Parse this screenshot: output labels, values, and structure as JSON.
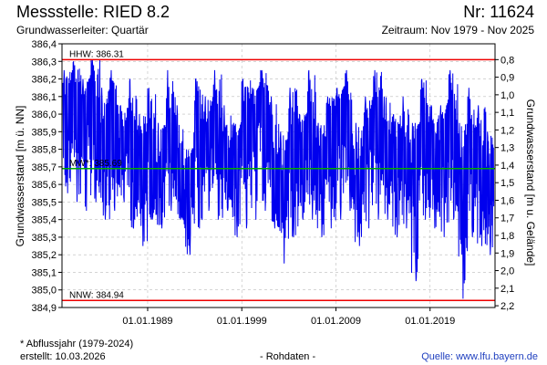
{
  "header": {
    "title_left": "Messstelle: RIED 8.2",
    "title_right": "Nr: 11624",
    "subtitle_left": "Grundwasserleiter: Quartär",
    "subtitle_right": "Zeitraum: Nov 1979 - Nov 2025"
  },
  "footer": {
    "note": "* Abflussjahr (1979-2024)",
    "created": "erstellt:  10.03.2026",
    "center": "- Rohdaten -",
    "source": "Quelle: www.lfu.bayern.de"
  },
  "colors": {
    "series": "#0000ee",
    "hhw": "#ee0000",
    "nnw": "#ee0000",
    "mw": "#00aa00",
    "grid": "#bbbbbb",
    "axis": "#000000"
  },
  "chart_data": {
    "type": "line",
    "ylabel": "Grundwasserstand [m ü. NN]",
    "ylabel_right": "Grundwasserstand [m u. Gelände]",
    "ylim": [
      384.9,
      386.4
    ],
    "y_ticks": [
      "386,4",
      "386,3",
      "386,2",
      "386,1",
      "386,0",
      "385,9",
      "385,8",
      "385,7",
      "385,6",
      "385,5",
      "385,4",
      "385,3",
      "385,2",
      "385,1",
      "385,0",
      "384,9"
    ],
    "y_tick_values": [
      386.4,
      386.3,
      386.2,
      386.1,
      386.0,
      385.9,
      385.8,
      385.7,
      385.6,
      385.5,
      385.4,
      385.3,
      385.2,
      385.1,
      385.0,
      384.9
    ],
    "y2_ticks": [
      "0,8",
      "0,9",
      "1,0",
      "1,1",
      "1,2",
      "1,3",
      "1,4",
      "1,5",
      "1,6",
      "1,7",
      "1,8",
      "1,9",
      "2,0",
      "2,1",
      "2,2"
    ],
    "y2_tick_depths": [
      0.8,
      0.9,
      1.0,
      1.1,
      1.2,
      1.3,
      1.4,
      1.5,
      1.6,
      1.7,
      1.8,
      1.9,
      2.0,
      2.1,
      2.2
    ],
    "ground_level": 387.11,
    "xlim": [
      1979.9,
      2025.9
    ],
    "x_ticks": [
      "01.01.1989",
      "01.01.1999",
      "01.01.2009",
      "01.01.2019"
    ],
    "x_tick_values": [
      1989.0,
      1999.0,
      2009.0,
      2019.0
    ],
    "hlines": [
      {
        "label": "HHW: 386.31",
        "value": 386.31
      },
      {
        "label": "MW*: 385.69",
        "value": 385.69
      },
      {
        "label": "NNW: 384.94",
        "value": 384.94
      }
    ],
    "series": [
      {
        "x": [
          1980.0,
          1981.0,
          1982.0,
          1983.0,
          1984.0,
          1985.0,
          1986.0,
          1987.0,
          1988.0,
          1989.0,
          1990.0,
          1991.0,
          1992.0,
          1993.0,
          1994.0,
          1995.0,
          1996.0,
          1997.0,
          1998.0,
          1999.0,
          2000.0,
          2001.0,
          2002.0,
          2003.0,
          2004.0,
          2005.0,
          2006.0,
          2007.0,
          2008.0,
          2009.0,
          2010.0,
          2011.0,
          2012.0,
          2013.0,
          2014.0,
          2015.0,
          2016.0,
          2017.0,
          2018.0,
          2019.0,
          2020.0,
          2021.0,
          2022.0,
          2023.0,
          2024.0,
          2025.0,
          2025.8
        ],
        "y": [
          385.95,
          386.2,
          385.9,
          386.3,
          385.8,
          386.1,
          385.75,
          386.0,
          385.6,
          385.9,
          385.5,
          385.95,
          385.7,
          385.3,
          386.0,
          385.8,
          386.1,
          385.75,
          385.6,
          386.0,
          385.9,
          386.25,
          385.8,
          385.4,
          385.9,
          385.7,
          386.05,
          385.6,
          385.85,
          385.95,
          386.2,
          385.5,
          385.8,
          386.1,
          385.9,
          385.7,
          385.85,
          385.6,
          386.0,
          385.8,
          385.75,
          386.15,
          385.55,
          385.9,
          385.8,
          385.5,
          385.7
        ],
        "min_values": [
          385.55,
          385.5,
          385.45,
          385.5,
          385.4,
          385.45,
          385.5,
          385.35,
          385.25,
          385.4,
          385.35,
          385.45,
          385.4,
          385.2,
          385.35,
          385.45,
          385.4,
          385.45,
          385.3,
          385.35,
          385.4,
          385.45,
          385.35,
          385.15,
          385.3,
          385.4,
          385.4,
          385.3,
          385.35,
          385.4,
          385.45,
          385.25,
          385.35,
          385.4,
          385.4,
          385.3,
          385.35,
          385.05,
          385.4,
          385.35,
          385.3,
          385.4,
          384.95,
          385.3,
          385.25,
          385.2,
          385.35
        ],
        "max_values": [
          386.25,
          386.3,
          386.2,
          386.31,
          386.15,
          386.25,
          386.05,
          386.2,
          386.0,
          386.15,
          385.95,
          386.25,
          386.05,
          385.8,
          386.2,
          386.1,
          386.25,
          386.05,
          385.95,
          386.2,
          386.15,
          386.25,
          386.1,
          385.9,
          386.15,
          386.0,
          386.25,
          385.95,
          386.1,
          386.15,
          386.25,
          385.95,
          386.1,
          386.25,
          386.1,
          386.0,
          386.1,
          385.95,
          386.2,
          386.05,
          386.05,
          386.25,
          385.95,
          386.15,
          386.05,
          385.9,
          386.0
        ]
      }
    ]
  }
}
